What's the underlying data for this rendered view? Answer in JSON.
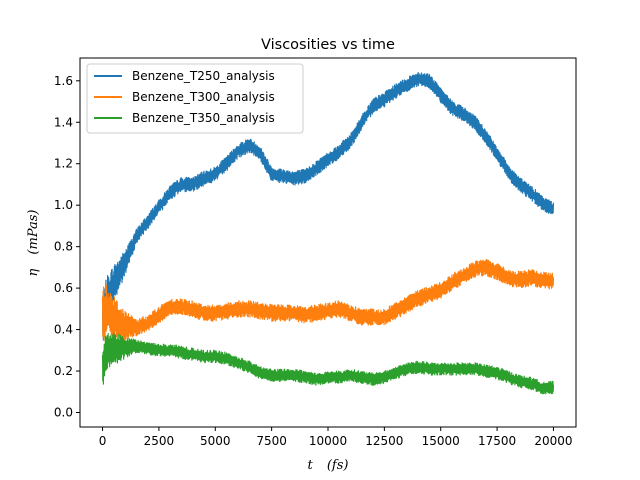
{
  "chart_data": {
    "type": "line",
    "title": "Viscosities vs time",
    "xlabel": "t (fs)",
    "ylabel": "η (mPas)",
    "xlim": [
      -1000,
      21000
    ],
    "ylim": [
      -0.07,
      1.71
    ],
    "x_ticks": [
      0,
      2500,
      5000,
      7500,
      10000,
      12500,
      15000,
      17500,
      20000
    ],
    "x_tick_labels": [
      "0",
      "2500",
      "5000",
      "7500",
      "10000",
      "12500",
      "15000",
      "17500",
      "20000"
    ],
    "y_ticks": [
      0.0,
      0.2,
      0.4,
      0.6,
      0.8,
      1.0,
      1.2,
      1.4,
      1.6
    ],
    "y_tick_labels": [
      "0.0",
      "0.2",
      "0.4",
      "0.6",
      "0.8",
      "1.0",
      "1.2",
      "1.4",
      "1.6"
    ],
    "grid": false,
    "legend_position": "top-left",
    "series": [
      {
        "name": "Benzene_T250_analysis",
        "color": "#1f77b4",
        "x": [
          0,
          200,
          500,
          1000,
          1500,
          2000,
          2500,
          3000,
          3500,
          4000,
          4500,
          5000,
          5500,
          6000,
          6500,
          7000,
          7500,
          8000,
          8500,
          9000,
          9500,
          10000,
          10500,
          11000,
          11500,
          12000,
          12500,
          13000,
          13500,
          14000,
          14500,
          15000,
          15500,
          16000,
          16500,
          17000,
          17500,
          18000,
          18500,
          19000,
          19500,
          20000
        ],
        "y": [
          0.45,
          0.55,
          0.62,
          0.72,
          0.85,
          0.92,
          0.99,
          1.06,
          1.1,
          1.1,
          1.13,
          1.15,
          1.2,
          1.26,
          1.29,
          1.25,
          1.15,
          1.14,
          1.13,
          1.14,
          1.18,
          1.22,
          1.26,
          1.31,
          1.4,
          1.48,
          1.51,
          1.55,
          1.58,
          1.61,
          1.6,
          1.53,
          1.47,
          1.44,
          1.4,
          1.33,
          1.25,
          1.16,
          1.1,
          1.06,
          1.01,
          0.98
        ],
        "band": 0.035
      },
      {
        "name": "Benzene_T300_analysis",
        "color": "#ff7f0e",
        "x": [
          0,
          100,
          200,
          400,
          700,
          1000,
          1500,
          2000,
          2500,
          3000,
          3500,
          4000,
          4500,
          5000,
          5500,
          6000,
          6500,
          7000,
          7500,
          8000,
          8500,
          9000,
          9500,
          10000,
          10500,
          11000,
          11500,
          12000,
          12500,
          13000,
          13500,
          14000,
          14500,
          15000,
          15500,
          16000,
          16500,
          17000,
          17500,
          18000,
          18500,
          19000,
          19500,
          20000
        ],
        "y": [
          0.45,
          0.5,
          0.49,
          0.47,
          0.44,
          0.42,
          0.41,
          0.43,
          0.47,
          0.51,
          0.51,
          0.5,
          0.48,
          0.48,
          0.49,
          0.5,
          0.5,
          0.49,
          0.48,
          0.48,
          0.48,
          0.47,
          0.48,
          0.49,
          0.5,
          0.48,
          0.46,
          0.46,
          0.46,
          0.49,
          0.52,
          0.55,
          0.57,
          0.59,
          0.63,
          0.66,
          0.69,
          0.7,
          0.68,
          0.65,
          0.64,
          0.65,
          0.64,
          0.63
        ],
        "band": 0.04
      },
      {
        "name": "Benzene_T350_analysis",
        "color": "#2ca02c",
        "x": [
          0,
          100,
          200,
          400,
          700,
          1000,
          1500,
          2000,
          2500,
          3000,
          3500,
          4000,
          4500,
          5000,
          5500,
          6000,
          6500,
          7000,
          7500,
          8000,
          8500,
          9000,
          9500,
          10000,
          10500,
          11000,
          11500,
          12000,
          12500,
          13000,
          13500,
          14000,
          14500,
          15000,
          15500,
          16000,
          16500,
          17000,
          17500,
          18000,
          18500,
          19000,
          19500,
          20000
        ],
        "y": [
          0.22,
          0.27,
          0.29,
          0.3,
          0.31,
          0.31,
          0.32,
          0.31,
          0.3,
          0.3,
          0.29,
          0.28,
          0.27,
          0.27,
          0.26,
          0.24,
          0.22,
          0.19,
          0.18,
          0.18,
          0.18,
          0.17,
          0.16,
          0.17,
          0.17,
          0.18,
          0.17,
          0.16,
          0.17,
          0.19,
          0.21,
          0.22,
          0.21,
          0.21,
          0.21,
          0.21,
          0.21,
          0.2,
          0.19,
          0.17,
          0.15,
          0.14,
          0.12,
          0.12
        ],
        "band": 0.03
      }
    ]
  }
}
